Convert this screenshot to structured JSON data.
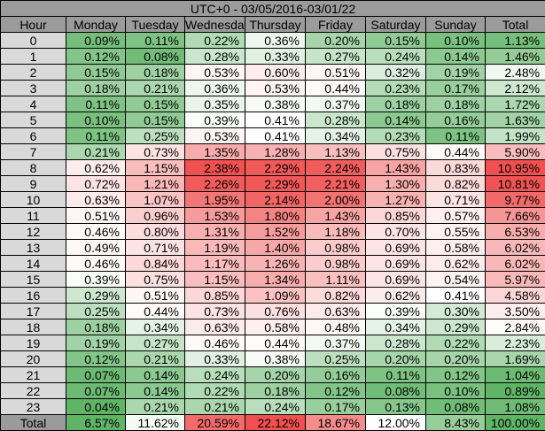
{
  "colors": {
    "low": "#5fb466",
    "mid": "#ffffff",
    "high": "#f05050",
    "title_bg": "#9b9b9b",
    "hour_bg": "#d9d9d9"
  },
  "chart_data": {
    "type": "heatmap",
    "title": "UTC+0 - 03/05/2016-03/01/22",
    "row_header": "Hour",
    "columns": [
      "Monday",
      "Tuesday",
      "Wednesday",
      "Thursday",
      "Friday",
      "Saturday",
      "Sunday",
      "Total"
    ],
    "rows": [
      {
        "hour": "0",
        "values": [
          0.09,
          0.11,
          0.22,
          0.36,
          0.2,
          0.15,
          0.1,
          1.13
        ],
        "labels": [
          "0.09%",
          "0.11%",
          "0.22%",
          "0.36%",
          "0.20%",
          "0.15%",
          "0.10%",
          "1.13%"
        ]
      },
      {
        "hour": "1",
        "values": [
          0.12,
          0.08,
          0.28,
          0.33,
          0.27,
          0.24,
          0.14,
          1.46
        ],
        "labels": [
          "0.12%",
          "0.08%",
          "0.28%",
          "0.33%",
          "0.27%",
          "0.24%",
          "0.14%",
          "1.46%"
        ]
      },
      {
        "hour": "2",
        "values": [
          0.15,
          0.18,
          0.53,
          0.6,
          0.51,
          0.32,
          0.19,
          2.48
        ],
        "labels": [
          "0.15%",
          "0.18%",
          "0.53%",
          "0.60%",
          "0.51%",
          "0.32%",
          "0.19%",
          "2.48%"
        ]
      },
      {
        "hour": "3",
        "values": [
          0.18,
          0.21,
          0.36,
          0.53,
          0.44,
          0.23,
          0.17,
          2.12
        ],
        "labels": [
          "0.18%",
          "0.21%",
          "0.36%",
          "0.53%",
          "0.44%",
          "0.23%",
          "0.17%",
          "2.12%"
        ]
      },
      {
        "hour": "4",
        "values": [
          0.11,
          0.15,
          0.35,
          0.38,
          0.37,
          0.18,
          0.18,
          1.72
        ],
        "labels": [
          "0.11%",
          "0.15%",
          "0.35%",
          "0.38%",
          "0.37%",
          "0.18%",
          "0.18%",
          "1.72%"
        ]
      },
      {
        "hour": "5",
        "values": [
          0.1,
          0.15,
          0.39,
          0.41,
          0.28,
          0.14,
          0.16,
          1.63
        ],
        "labels": [
          "0.10%",
          "0.15%",
          "0.39%",
          "0.41%",
          "0.28%",
          "0.14%",
          "0.16%",
          "1.63%"
        ]
      },
      {
        "hour": "6",
        "values": [
          0.11,
          0.25,
          0.53,
          0.41,
          0.34,
          0.23,
          0.11,
          1.99
        ],
        "labels": [
          "0.11%",
          "0.25%",
          "0.53%",
          "0.41%",
          "0.34%",
          "0.23%",
          "0.11%",
          "1.99%"
        ]
      },
      {
        "hour": "7",
        "values": [
          0.21,
          0.73,
          1.35,
          1.28,
          1.13,
          0.75,
          0.44,
          5.9
        ],
        "labels": [
          "0.21%",
          "0.73%",
          "1.35%",
          "1.28%",
          "1.13%",
          "0.75%",
          "0.44%",
          "5.90%"
        ]
      },
      {
        "hour": "8",
        "values": [
          0.62,
          1.15,
          2.38,
          2.29,
          2.24,
          1.43,
          0.83,
          10.95
        ],
        "labels": [
          "0.62%",
          "1.15%",
          "2.38%",
          "2.29%",
          "2.24%",
          "1.43%",
          "0.83%",
          "10.95%"
        ]
      },
      {
        "hour": "9",
        "values": [
          0.72,
          1.21,
          2.26,
          2.29,
          2.21,
          1.3,
          0.82,
          10.81
        ],
        "labels": [
          "0.72%",
          "1.21%",
          "2.26%",
          "2.29%",
          "2.21%",
          "1.30%",
          "0.82%",
          "10.81%"
        ]
      },
      {
        "hour": "10",
        "values": [
          0.63,
          1.07,
          1.95,
          2.14,
          2.0,
          1.27,
          0.71,
          9.77
        ],
        "labels": [
          "0.63%",
          "1.07%",
          "1.95%",
          "2.14%",
          "2.00%",
          "1.27%",
          "0.71%",
          "9.77%"
        ]
      },
      {
        "hour": "11",
        "values": [
          0.51,
          0.96,
          1.53,
          1.8,
          1.43,
          0.85,
          0.57,
          7.66
        ],
        "labels": [
          "0.51%",
          "0.96%",
          "1.53%",
          "1.80%",
          "1.43%",
          "0.85%",
          "0.57%",
          "7.66%"
        ]
      },
      {
        "hour": "12",
        "values": [
          0.46,
          0.8,
          1.31,
          1.52,
          1.18,
          0.7,
          0.55,
          6.53
        ],
        "labels": [
          "0.46%",
          "0.80%",
          "1.31%",
          "1.52%",
          "1.18%",
          "0.70%",
          "0.55%",
          "6.53%"
        ]
      },
      {
        "hour": "13",
        "values": [
          0.49,
          0.71,
          1.19,
          1.4,
          0.98,
          0.69,
          0.58,
          6.02
        ],
        "labels": [
          "0.49%",
          "0.71%",
          "1.19%",
          "1.40%",
          "0.98%",
          "0.69%",
          "0.58%",
          "6.02%"
        ]
      },
      {
        "hour": "14",
        "values": [
          0.46,
          0.84,
          1.17,
          1.26,
          0.98,
          0.69,
          0.62,
          6.02
        ],
        "labels": [
          "0.46%",
          "0.84%",
          "1.17%",
          "1.26%",
          "0.98%",
          "0.69%",
          "0.62%",
          "6.02%"
        ]
      },
      {
        "hour": "15",
        "values": [
          0.39,
          0.75,
          1.15,
          1.34,
          1.11,
          0.69,
          0.54,
          5.97
        ],
        "labels": [
          "0.39%",
          "0.75%",
          "1.15%",
          "1.34%",
          "1.11%",
          "0.69%",
          "0.54%",
          "5.97%"
        ]
      },
      {
        "hour": "16",
        "values": [
          0.29,
          0.51,
          0.85,
          1.09,
          0.82,
          0.62,
          0.41,
          4.58
        ],
        "labels": [
          "0.29%",
          "0.51%",
          "0.85%",
          "1.09%",
          "0.82%",
          "0.62%",
          "0.41%",
          "4.58%"
        ]
      },
      {
        "hour": "17",
        "values": [
          0.25,
          0.44,
          0.73,
          0.76,
          0.63,
          0.39,
          0.3,
          3.5
        ],
        "labels": [
          "0.25%",
          "0.44%",
          "0.73%",
          "0.76%",
          "0.63%",
          "0.39%",
          "0.30%",
          "3.50%"
        ]
      },
      {
        "hour": "18",
        "values": [
          0.18,
          0.34,
          0.63,
          0.58,
          0.48,
          0.34,
          0.29,
          2.84
        ],
        "labels": [
          "0.18%",
          "0.34%",
          "0.63%",
          "0.58%",
          "0.48%",
          "0.34%",
          "0.29%",
          "2.84%"
        ]
      },
      {
        "hour": "19",
        "values": [
          0.19,
          0.27,
          0.46,
          0.44,
          0.37,
          0.28,
          0.22,
          2.23
        ],
        "labels": [
          "0.19%",
          "0.27%",
          "0.46%",
          "0.44%",
          "0.37%",
          "0.28%",
          "0.22%",
          "2.23%"
        ]
      },
      {
        "hour": "20",
        "values": [
          0.12,
          0.21,
          0.33,
          0.38,
          0.25,
          0.2,
          0.2,
          1.69
        ],
        "labels": [
          "0.12%",
          "0.21%",
          "0.33%",
          "0.38%",
          "0.25%",
          "0.20%",
          "0.20%",
          "1.69%"
        ]
      },
      {
        "hour": "21",
        "values": [
          0.07,
          0.14,
          0.24,
          0.2,
          0.16,
          0.11,
          0.12,
          1.04
        ],
        "labels": [
          "0.07%",
          "0.14%",
          "0.24%",
          "0.20%",
          "0.16%",
          "0.11%",
          "0.12%",
          "1.04%"
        ]
      },
      {
        "hour": "22",
        "values": [
          0.07,
          0.14,
          0.22,
          0.18,
          0.12,
          0.08,
          0.1,
          0.89
        ],
        "labels": [
          "0.07%",
          "0.14%",
          "0.22%",
          "0.18%",
          "0.12%",
          "0.08%",
          "0.10%",
          "0.89%"
        ]
      },
      {
        "hour": "23",
        "values": [
          0.04,
          0.21,
          0.21,
          0.24,
          0.17,
          0.13,
          0.08,
          1.08
        ],
        "labels": [
          "0.04%",
          "0.21%",
          "0.21%",
          "0.24%",
          "0.17%",
          "0.13%",
          "0.08%",
          "1.08%"
        ]
      }
    ],
    "total_row": {
      "label": "Total",
      "values": [
        6.57,
        11.62,
        20.59,
        22.12,
        18.67,
        12.0,
        8.43,
        100.0
      ],
      "labels": [
        "6.57%",
        "11.62%",
        "20.59%",
        "22.12%",
        "18.67%",
        "12.00%",
        "8.43%",
        "100.00%"
      ]
    }
  }
}
